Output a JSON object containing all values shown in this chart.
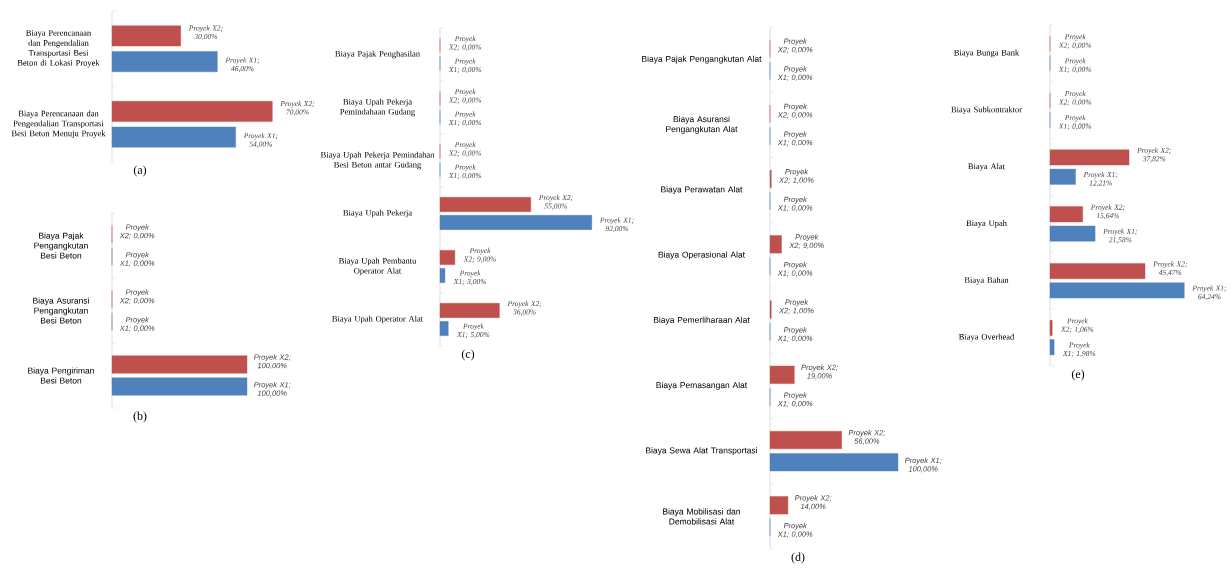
{
  "chart_data": [
    {
      "type": "bar",
      "orientation": "horizontal",
      "title": "(a)",
      "tick_labels": "y",
      "categories": [
        "Biaya Perencanaan dan Pengendalian Transportasi Besi Beton di Lokasi Proyek",
        "Biaya Perencanaan dan Pengendalian Transportasi Besi Beton Menuju Proyek"
      ],
      "series": [
        {
          "color": "#c0504d",
          "values": [
            30,
            70
          ],
          "value_labels": [
            "Proyek X2; 30,00%",
            "Proyek X2; 70,00%"
          ]
        },
        {
          "color": "#4f81bd",
          "values": [
            46,
            54
          ],
          "value_labels": [
            "Proyek X1; 46,00%",
            "Proyek X1; 54,00%"
          ]
        }
      ]
    },
    {
      "type": "bar",
      "orientation": "horizontal",
      "title": "(b)",
      "tick_labels": "y",
      "categories": [
        "Biaya Pajak Pengangkutan Besi Beton",
        "Biaya Asuransi Pengangkutan Besi Beton",
        "Biaya Pengiriman Besi Beton"
      ],
      "series": [
        {
          "color": "#c0504d",
          "values": [
            0,
            0,
            100
          ],
          "value_labels": [
            "Proyek X2; 0,00%",
            "Proyek X2; 0,00%",
            "Proyek X2; 100,00%"
          ]
        },
        {
          "color": "#4f81bd",
          "values": [
            0,
            0,
            100
          ],
          "value_labels": [
            "Proyek X1; 0,00%",
            "Proyek X1; 0,00%",
            "Proyek X1; 100,00%"
          ]
        }
      ]
    },
    {
      "type": "bar",
      "orientation": "horizontal",
      "title": "(c)",
      "tick_labels": "y",
      "categories": [
        "Biaya Pajak Penghasilan",
        "Biaya Upah Pekerja Pemindahaan Gudang",
        "Biaya Upah Pekerja Pemindahan Besi Beton antar Gudang",
        "Biaya Upah Pekerja",
        "Biaya Upah Pembantu Operator Alat",
        "Biaya Upah Operator Alat"
      ],
      "series": [
        {
          "color": "#c0504d",
          "values": [
            0,
            0,
            0,
            55,
            9,
            36
          ],
          "value_labels": [
            "Proyek X2; 0,00%",
            "Proyek X2; 0,00%",
            "Proyek X2; 0,00%",
            "Proyek X2; 55,00%",
            "Proyek X2; 9,00%",
            "Proyek X2; 36,00%"
          ]
        },
        {
          "color": "#4f81bd",
          "values": [
            0,
            0,
            0,
            92,
            3,
            5
          ],
          "value_labels": [
            "Proyek X1; 0,00%",
            "Proyek X1; 0,00%",
            "Proyek X1; 0,00%",
            "Proyek X1; 92,00%",
            "Proyek X1; 3,00%",
            "Proyek X1; 5,00%"
          ]
        }
      ]
    },
    {
      "type": "bar",
      "orientation": "horizontal",
      "title": "(d)",
      "tick_labels": "y",
      "categories": [
        "Biaya Pajak Pengangkutan Alat",
        "Biaya Asuransi Pengangkutan Alat",
        "Biaya Perawatan Alat",
        "Biaya Operasional Alat",
        "Biaya Pemerliharaan Alat",
        "Biaya Pemasangan Alat",
        "Biaya Sewa Alat Transportasi",
        "Biaya Mobilisasi dan Demobilisasi Alat"
      ],
      "series": [
        {
          "color": "#c0504d",
          "values": [
            0,
            0,
            1,
            9,
            1,
            19,
            56,
            14
          ],
          "value_labels": [
            "Proyek X2; 0,00%",
            "Proyek X2; 0,00%",
            "Proyek X2; 1,00%",
            "Proyek X2; 9,00%",
            "Proyek X2; 1,00%",
            "Proyek X2; 19,00%",
            "Proyek X2; 56,00%",
            "Proyek X2; 14,00%"
          ]
        },
        {
          "color": "#4f81bd",
          "values": [
            0,
            0,
            0,
            0,
            0,
            0,
            100,
            0
          ],
          "value_labels": [
            "Proyek X1; 0,00%",
            "Proyek X1; 0,00%",
            "Proyek X1; 0,00%",
            "Proyek X1; 0,00%",
            "Proyek X1; 0,00%",
            "Proyek X1; 0,00%",
            "Proyek X1; 100,00%",
            "Proyek X1; 0,00%"
          ]
        }
      ]
    },
    {
      "type": "bar",
      "orientation": "horizontal",
      "title": "(e)",
      "tick_labels": "y",
      "categories": [
        "Biaya Bunga Bank",
        "Biaya Subkontraktor",
        "Biaya Alat",
        "Biaya Upah",
        "Biaya Bahan",
        "Biaya Overhead"
      ],
      "series": [
        {
          "color": "#c0504d",
          "values": [
            0,
            0,
            37.82,
            15.64,
            45.47,
            1.06
          ],
          "value_labels": [
            "Proyek X2; 0,00%",
            "Proyek X2; 0,00%",
            "Proyek X2; 37,82%",
            "Proyek X2; 15,64%",
            "Proyek X2; 45,47%",
            "Proyek X2; 1,06%"
          ]
        },
        {
          "color": "#4f81bd",
          "values": [
            0,
            0,
            12.21,
            21.58,
            64.24,
            1.98
          ],
          "value_labels": [
            "Proyek X1; 0,00%",
            "Proyek X1; 0,00%",
            "Proyek X1; 12,21%",
            "Proyek X1; 21,58%",
            "Proyek X1; 64,24%",
            "Proyek X1; 1,98%"
          ]
        }
      ]
    }
  ]
}
